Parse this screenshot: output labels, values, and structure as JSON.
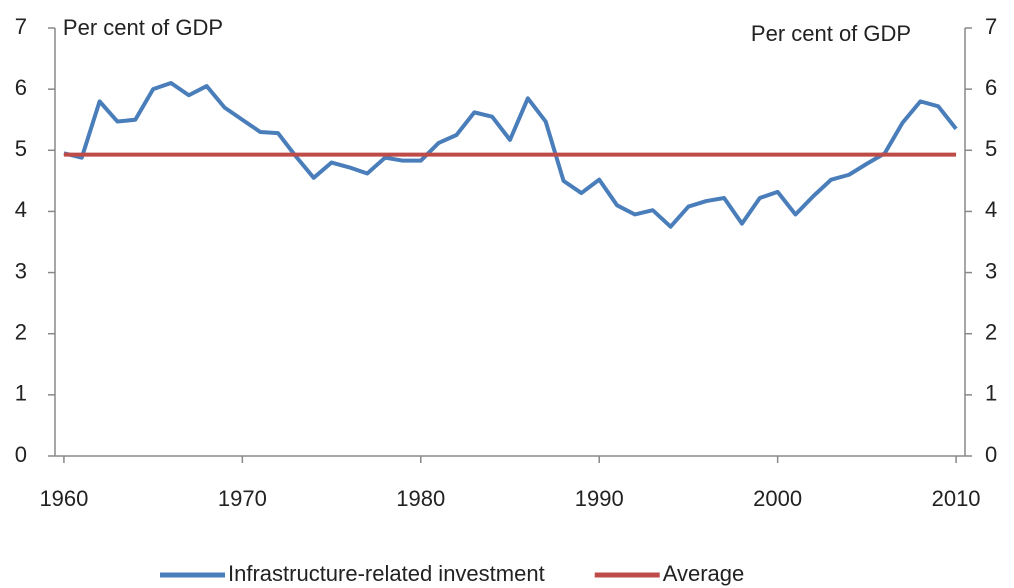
{
  "chart_data": {
    "type": "line",
    "y_label": "Per cent of GDP",
    "y2_label": "Per cent of GDP",
    "x": [
      1960,
      1961,
      1962,
      1963,
      1964,
      1965,
      1966,
      1967,
      1968,
      1969,
      1970,
      1971,
      1972,
      1973,
      1974,
      1975,
      1976,
      1977,
      1978,
      1979,
      1980,
      1981,
      1982,
      1983,
      1984,
      1985,
      1986,
      1987,
      1988,
      1989,
      1990,
      1991,
      1992,
      1993,
      1994,
      1995,
      1996,
      1997,
      1998,
      1999,
      2000,
      2001,
      2002,
      2003,
      2004,
      2005,
      2006,
      2007,
      2008,
      2009,
      2010
    ],
    "series": [
      {
        "name": "Infrastructure-related investment",
        "color": "#4a7ebb",
        "values": [
          4.95,
          4.88,
          5.8,
          5.47,
          5.5,
          6.0,
          6.1,
          5.9,
          6.05,
          5.7,
          5.5,
          5.3,
          5.28,
          4.9,
          4.55,
          4.8,
          4.72,
          4.62,
          4.88,
          4.83,
          4.83,
          5.12,
          5.25,
          5.62,
          5.55,
          5.17,
          5.85,
          5.47,
          4.5,
          4.3,
          4.52,
          4.1,
          3.95,
          4.02,
          3.75,
          4.08,
          4.17,
          4.22,
          3.8,
          4.22,
          4.32,
          3.95,
          4.25,
          4.52,
          4.6,
          4.78,
          4.95,
          5.45,
          5.8,
          5.72,
          5.35
        ]
      },
      {
        "name": "Average",
        "color": "#be4b48",
        "values": [
          4.93,
          4.93,
          4.93,
          4.93,
          4.93,
          4.93,
          4.93,
          4.93,
          4.93,
          4.93,
          4.93,
          4.93,
          4.93,
          4.93,
          4.93,
          4.93,
          4.93,
          4.93,
          4.93,
          4.93,
          4.93,
          4.93,
          4.93,
          4.93,
          4.93,
          4.93,
          4.93,
          4.93,
          4.93,
          4.93,
          4.93,
          4.93,
          4.93,
          4.93,
          4.93,
          4.93,
          4.93,
          4.93,
          4.93,
          4.93,
          4.93,
          4.93,
          4.93,
          4.93,
          4.93,
          4.93,
          4.93,
          4.93,
          4.93,
          4.93,
          4.93
        ]
      }
    ],
    "xlim": [
      1959.5,
      2010.5
    ],
    "xticks": [
      1960,
      1970,
      1980,
      1990,
      2000,
      2010
    ],
    "ylim": [
      0,
      7
    ],
    "yticks": [
      0,
      1,
      2,
      3,
      4,
      5,
      6,
      7
    ],
    "y2lim": [
      0,
      7
    ],
    "y2ticks": [
      0,
      1,
      2,
      3,
      4,
      5,
      6,
      7
    ],
    "grid": false,
    "legend": "bottom"
  }
}
